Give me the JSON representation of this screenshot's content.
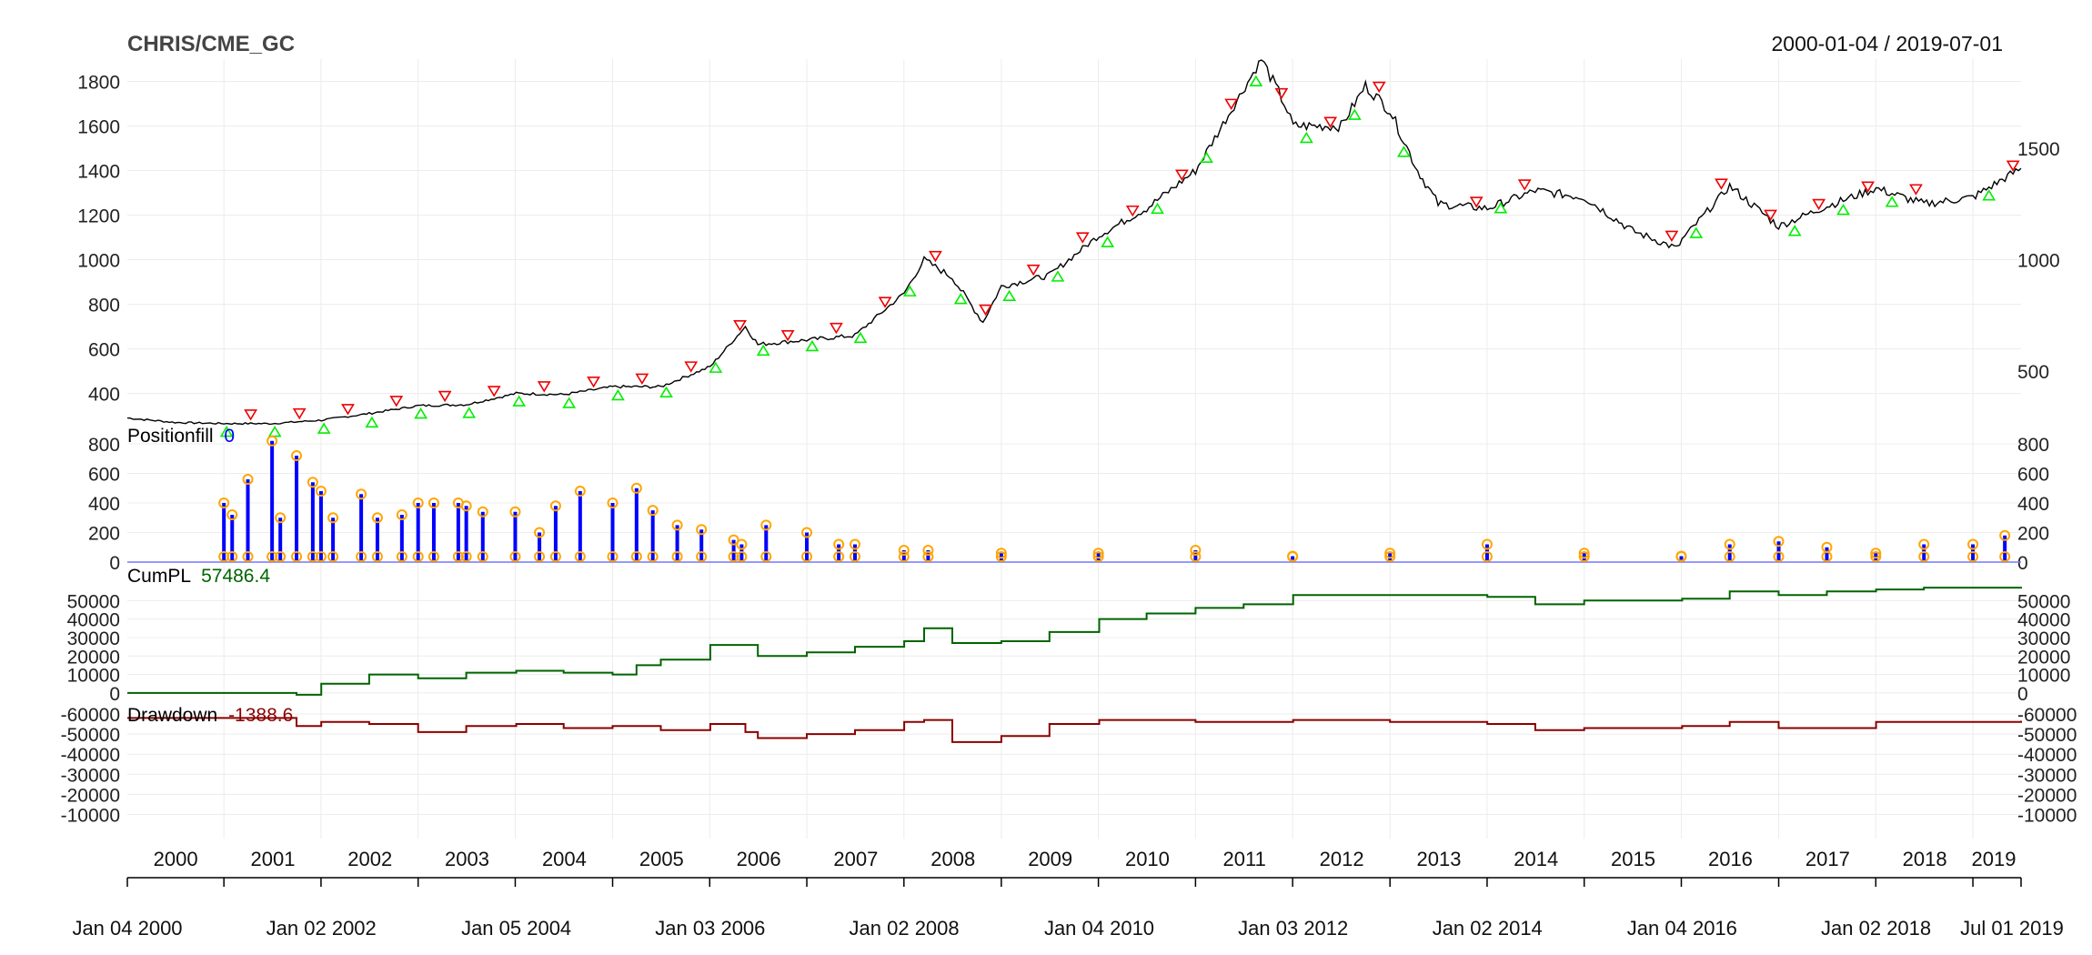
{
  "title": "CHRIS/CME_GC",
  "date_range": "2000-01-04 / 2019-07-01",
  "panels": {
    "positionfill": {
      "label": "Positionfill",
      "value": "0"
    },
    "cumpl": {
      "label": "CumPL",
      "value": "57486.4"
    },
    "drawdown": {
      "label": "Drawdown",
      "value": "-1388.6"
    }
  },
  "colors": {
    "price": "#000000",
    "buy_marker": "#00ee00",
    "sell_marker": "#ee0000",
    "position_bar": "#0000ff",
    "position_marker": "#ffa500",
    "cumpl_line": "#006400",
    "drawdown_line": "#8b0000",
    "grid": "#ececec"
  },
  "chart_data": [
    {
      "type": "line",
      "name": "price",
      "x": [
        "2000-01-04",
        "2000-07-01",
        "2001-01-01",
        "2001-07-01",
        "2002-01-02",
        "2002-07-01",
        "2003-01-01",
        "2003-07-01",
        "2004-01-05",
        "2004-07-01",
        "2005-01-01",
        "2005-07-01",
        "2006-01-03",
        "2006-05-15",
        "2006-07-01",
        "2007-01-01",
        "2007-07-01",
        "2008-01-02",
        "2008-03-17",
        "2008-07-01",
        "2008-10-24",
        "2009-01-01",
        "2009-07-01",
        "2010-01-04",
        "2010-07-01",
        "2011-01-01",
        "2011-09-06",
        "2011-12-01",
        "2012-01-03",
        "2012-07-01",
        "2012-10-01",
        "2013-01-01",
        "2013-04-15",
        "2013-07-01",
        "2014-01-02",
        "2014-07-01",
        "2015-01-01",
        "2015-07-01",
        "2015-12-17",
        "2016-01-04",
        "2016-07-01",
        "2017-01-01",
        "2017-07-01",
        "2018-01-02",
        "2018-07-01",
        "2019-01-01",
        "2019-07-01"
      ],
      "values": [
        290,
        270,
        265,
        265,
        280,
        310,
        345,
        350,
        400,
        395,
        430,
        430,
        520,
        700,
        620,
        640,
        660,
        850,
        1000,
        920,
        720,
        880,
        930,
        1110,
        1230,
        1400,
        1900,
        1700,
        1600,
        1600,
        1780,
        1670,
        1400,
        1250,
        1230,
        1310,
        1280,
        1130,
        1050,
        1090,
        1330,
        1150,
        1240,
        1320,
        1250,
        1280,
        1410
      ],
      "ylim": [
        280,
        1900
      ],
      "yticks": [
        400,
        600,
        800,
        1000,
        1200,
        1400,
        1600,
        1800
      ],
      "right_ticks": [
        "500",
        "1000",
        "1500"
      ]
    },
    {
      "type": "bar",
      "name": "Positionfill",
      "x": [
        "2001-01-01",
        "2001-02-01",
        "2001-04-01",
        "2001-07-01",
        "2001-08-01",
        "2001-10-01",
        "2001-12-01",
        "2002-01-01",
        "2002-02-15",
        "2002-06-01",
        "2002-08-01",
        "2002-11-01",
        "2003-01-01",
        "2003-03-01",
        "2003-06-01",
        "2003-07-01",
        "2003-09-01",
        "2004-01-01",
        "2004-04-01",
        "2004-06-01",
        "2004-09-01",
        "2005-01-01",
        "2005-04-01",
        "2005-06-01",
        "2005-09-01",
        "2005-12-01",
        "2006-04-01",
        "2006-05-01",
        "2006-08-01",
        "2007-01-01",
        "2007-05-01",
        "2007-07-01",
        "2008-01-01",
        "2008-04-01",
        "2009-01-01",
        "2010-01-01",
        "2011-01-01",
        "2012-01-01",
        "2013-01-01",
        "2014-01-01",
        "2015-01-01",
        "2016-01-01",
        "2016-07-01",
        "2017-01-01",
        "2017-07-01",
        "2018-01-01",
        "2018-07-01",
        "2019-01-01",
        "2019-05-01"
      ],
      "values": [
        400,
        320,
        560,
        820,
        300,
        720,
        540,
        480,
        300,
        460,
        300,
        320,
        400,
        400,
        400,
        380,
        340,
        340,
        200,
        380,
        480,
        400,
        500,
        350,
        250,
        220,
        150,
        120,
        250,
        200,
        120,
        120,
        80,
        80,
        60,
        60,
        80,
        40,
        60,
        120,
        60,
        40,
        120,
        140,
        100,
        60,
        120,
        120,
        180
      ],
      "ylim": [
        0,
        800
      ],
      "yticks": [
        0,
        200,
        400,
        600,
        800
      ]
    },
    {
      "type": "line",
      "name": "CumPL",
      "x": [
        "2000-01-04",
        "2001-01-01",
        "2001-10-01",
        "2002-01-02",
        "2002-07-01",
        "2003-01-01",
        "2003-07-01",
        "2004-01-05",
        "2004-07-01",
        "2005-01-01",
        "2005-04-01",
        "2005-07-01",
        "2006-01-03",
        "2006-07-01",
        "2007-01-01",
        "2007-07-01",
        "2008-01-02",
        "2008-03-17",
        "2008-07-01",
        "2009-01-01",
        "2009-07-01",
        "2010-01-04",
        "2010-07-01",
        "2011-01-01",
        "2011-07-01",
        "2012-01-03",
        "2012-07-01",
        "2013-01-01",
        "2013-07-01",
        "2014-01-02",
        "2014-07-01",
        "2015-01-01",
        "2015-07-01",
        "2016-01-04",
        "2016-07-01",
        "2017-01-01",
        "2017-07-01",
        "2018-01-02",
        "2018-07-01",
        "2019-01-01",
        "2019-07-01"
      ],
      "values": [
        0,
        0,
        -1000,
        5000,
        10000,
        8000,
        11000,
        12000,
        11000,
        10000,
        15000,
        18000,
        26000,
        20000,
        22000,
        25000,
        28000,
        35000,
        27000,
        28000,
        33000,
        40000,
        43000,
        46000,
        48000,
        53000,
        53000,
        53000,
        53000,
        52000,
        48000,
        50000,
        50000,
        51000,
        55000,
        53000,
        55000,
        56000,
        57000,
        57000,
        57486.4
      ],
      "ylim": [
        -3000,
        60000
      ],
      "yticks": [
        0,
        10000,
        20000,
        30000,
        40000,
        50000
      ]
    },
    {
      "type": "line",
      "name": "Drawdown",
      "x": [
        "2000-01-04",
        "2001-01-01",
        "2001-10-01",
        "2002-01-02",
        "2002-07-01",
        "2003-01-01",
        "2003-07-01",
        "2004-01-05",
        "2004-07-01",
        "2005-01-01",
        "2005-07-01",
        "2006-01-03",
        "2006-05-15",
        "2006-07-01",
        "2007-01-01",
        "2007-07-01",
        "2008-01-02",
        "2008-03-17",
        "2008-07-01",
        "2009-01-01",
        "2009-07-01",
        "2010-01-04",
        "2011-01-01",
        "2012-01-03",
        "2012-07-01",
        "2013-01-01",
        "2014-01-02",
        "2014-07-01",
        "2015-01-01",
        "2016-01-04",
        "2016-07-01",
        "2017-01-01",
        "2018-01-02",
        "2019-01-01",
        "2019-07-01"
      ],
      "values": [
        0,
        0,
        -4000,
        -2000,
        -3000,
        -7000,
        -4000,
        -3000,
        -5000,
        -4000,
        -6000,
        -3000,
        -7000,
        -10000,
        -8000,
        -6000,
        -2000,
        -1000,
        -12000,
        -9000,
        -3000,
        -1000,
        -2000,
        -1000,
        -1000,
        -2000,
        -3000,
        -6000,
        -5000,
        -4000,
        -2000,
        -5000,
        -2000,
        -2000,
        -1388.6
      ],
      "ylim": [
        -60000,
        2000
      ],
      "yticks": [
        -10000,
        -20000,
        -30000,
        -40000,
        -50000,
        -60000
      ]
    }
  ],
  "axis": {
    "years": [
      "2000",
      "2001",
      "2002",
      "2003",
      "2004",
      "2005",
      "2006",
      "2007",
      "2008",
      "2009",
      "2010",
      "2011",
      "2012",
      "2013",
      "2014",
      "2015",
      "2016",
      "2017",
      "2018",
      "2019"
    ],
    "date_ticks": [
      "Jan 04 2000",
      "Jan 02 2002",
      "Jan 05 2004",
      "Jan 03 2006",
      "Jan 02 2008",
      "Jan 04 2010",
      "Jan 03 2012",
      "Jan 02 2014",
      "Jan 04 2016",
      "Jan 02 2018",
      "Jul 01 2019"
    ]
  }
}
